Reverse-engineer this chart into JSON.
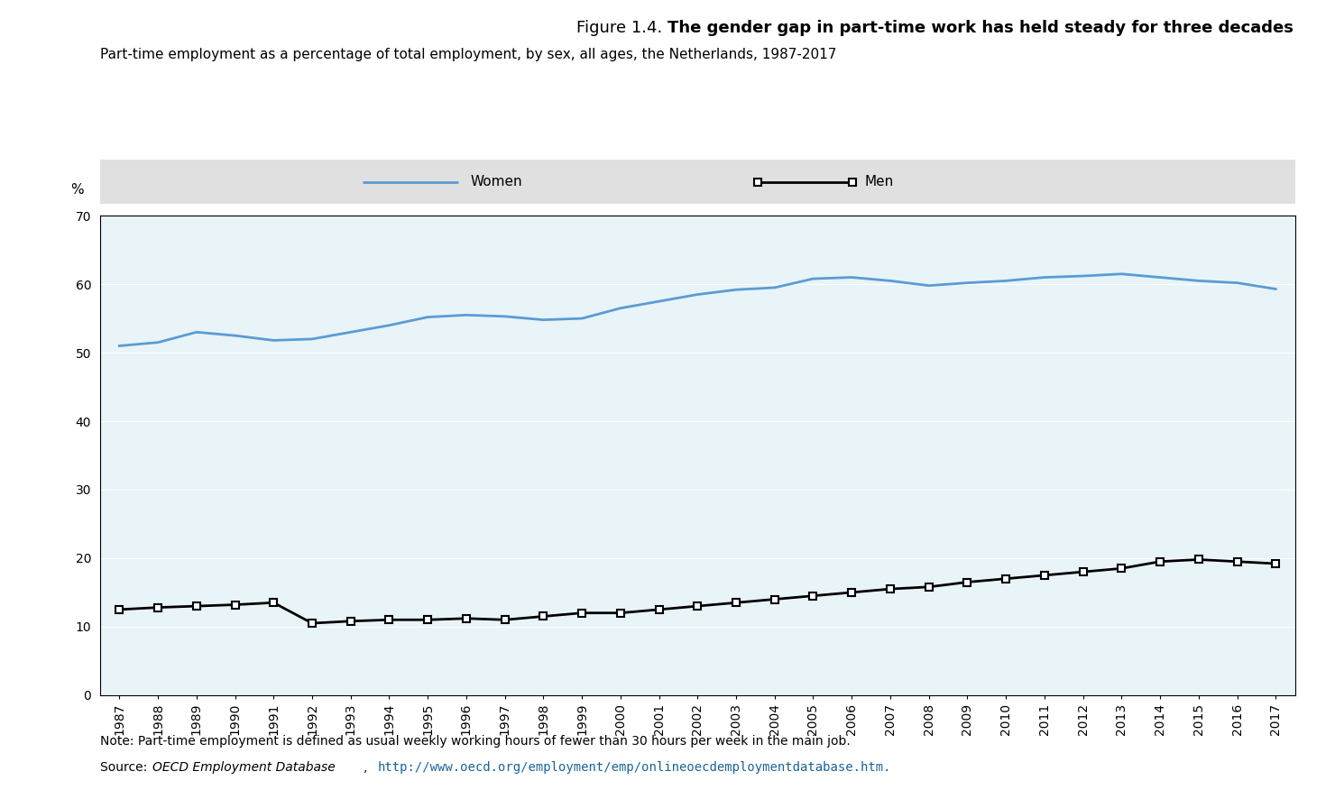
{
  "title_regular": "Figure 1.4. ",
  "title_bold": "The gender gap in part-time work has held steady for three decades",
  "subtitle": "Part-time employment as a percentage of total employment, by sex, all ages, the Netherlands, 1987-2017",
  "ylabel": "%",
  "ylim": [
    0,
    70
  ],
  "yticks": [
    0,
    10,
    20,
    30,
    40,
    50,
    60,
    70
  ],
  "years": [
    1987,
    1988,
    1989,
    1990,
    1991,
    1992,
    1993,
    1994,
    1995,
    1996,
    1997,
    1998,
    1999,
    2000,
    2001,
    2002,
    2003,
    2004,
    2005,
    2006,
    2007,
    2008,
    2009,
    2010,
    2011,
    2012,
    2013,
    2014,
    2015,
    2016,
    2017
  ],
  "women": [
    51.0,
    51.5,
    53.0,
    52.5,
    51.8,
    52.0,
    53.0,
    54.0,
    55.2,
    55.5,
    55.3,
    54.8,
    55.0,
    56.5,
    57.5,
    58.5,
    59.2,
    59.5,
    60.8,
    61.0,
    60.5,
    59.8,
    60.2,
    60.5,
    61.0,
    61.2,
    61.5,
    61.0,
    60.5,
    60.2,
    59.3
  ],
  "men": [
    12.5,
    12.8,
    13.0,
    13.2,
    13.5,
    10.5,
    10.8,
    11.0,
    11.0,
    11.2,
    11.0,
    11.5,
    12.0,
    12.0,
    12.5,
    13.0,
    13.5,
    14.0,
    14.5,
    15.0,
    15.5,
    15.8,
    16.5,
    17.0,
    17.5,
    18.0,
    18.5,
    19.5,
    19.8,
    19.5,
    19.2
  ],
  "women_color": "#5b9bd5",
  "men_color": "#000000",
  "plot_bg_color": "#e8f4f8",
  "legend_bg": "#e0e0e0",
  "note": "Note: Part-time employment is defined as usual weekly working hours of fewer than 30 hours per week in the main job.",
  "source_normal": "Source: ",
  "source_italic": "OECD Employment Database",
  "source_comma": ", ",
  "source_url": "http://www.oecd.org/employment/emp/onlineoecdemploymentdatabase.htm",
  "source_dot": "."
}
